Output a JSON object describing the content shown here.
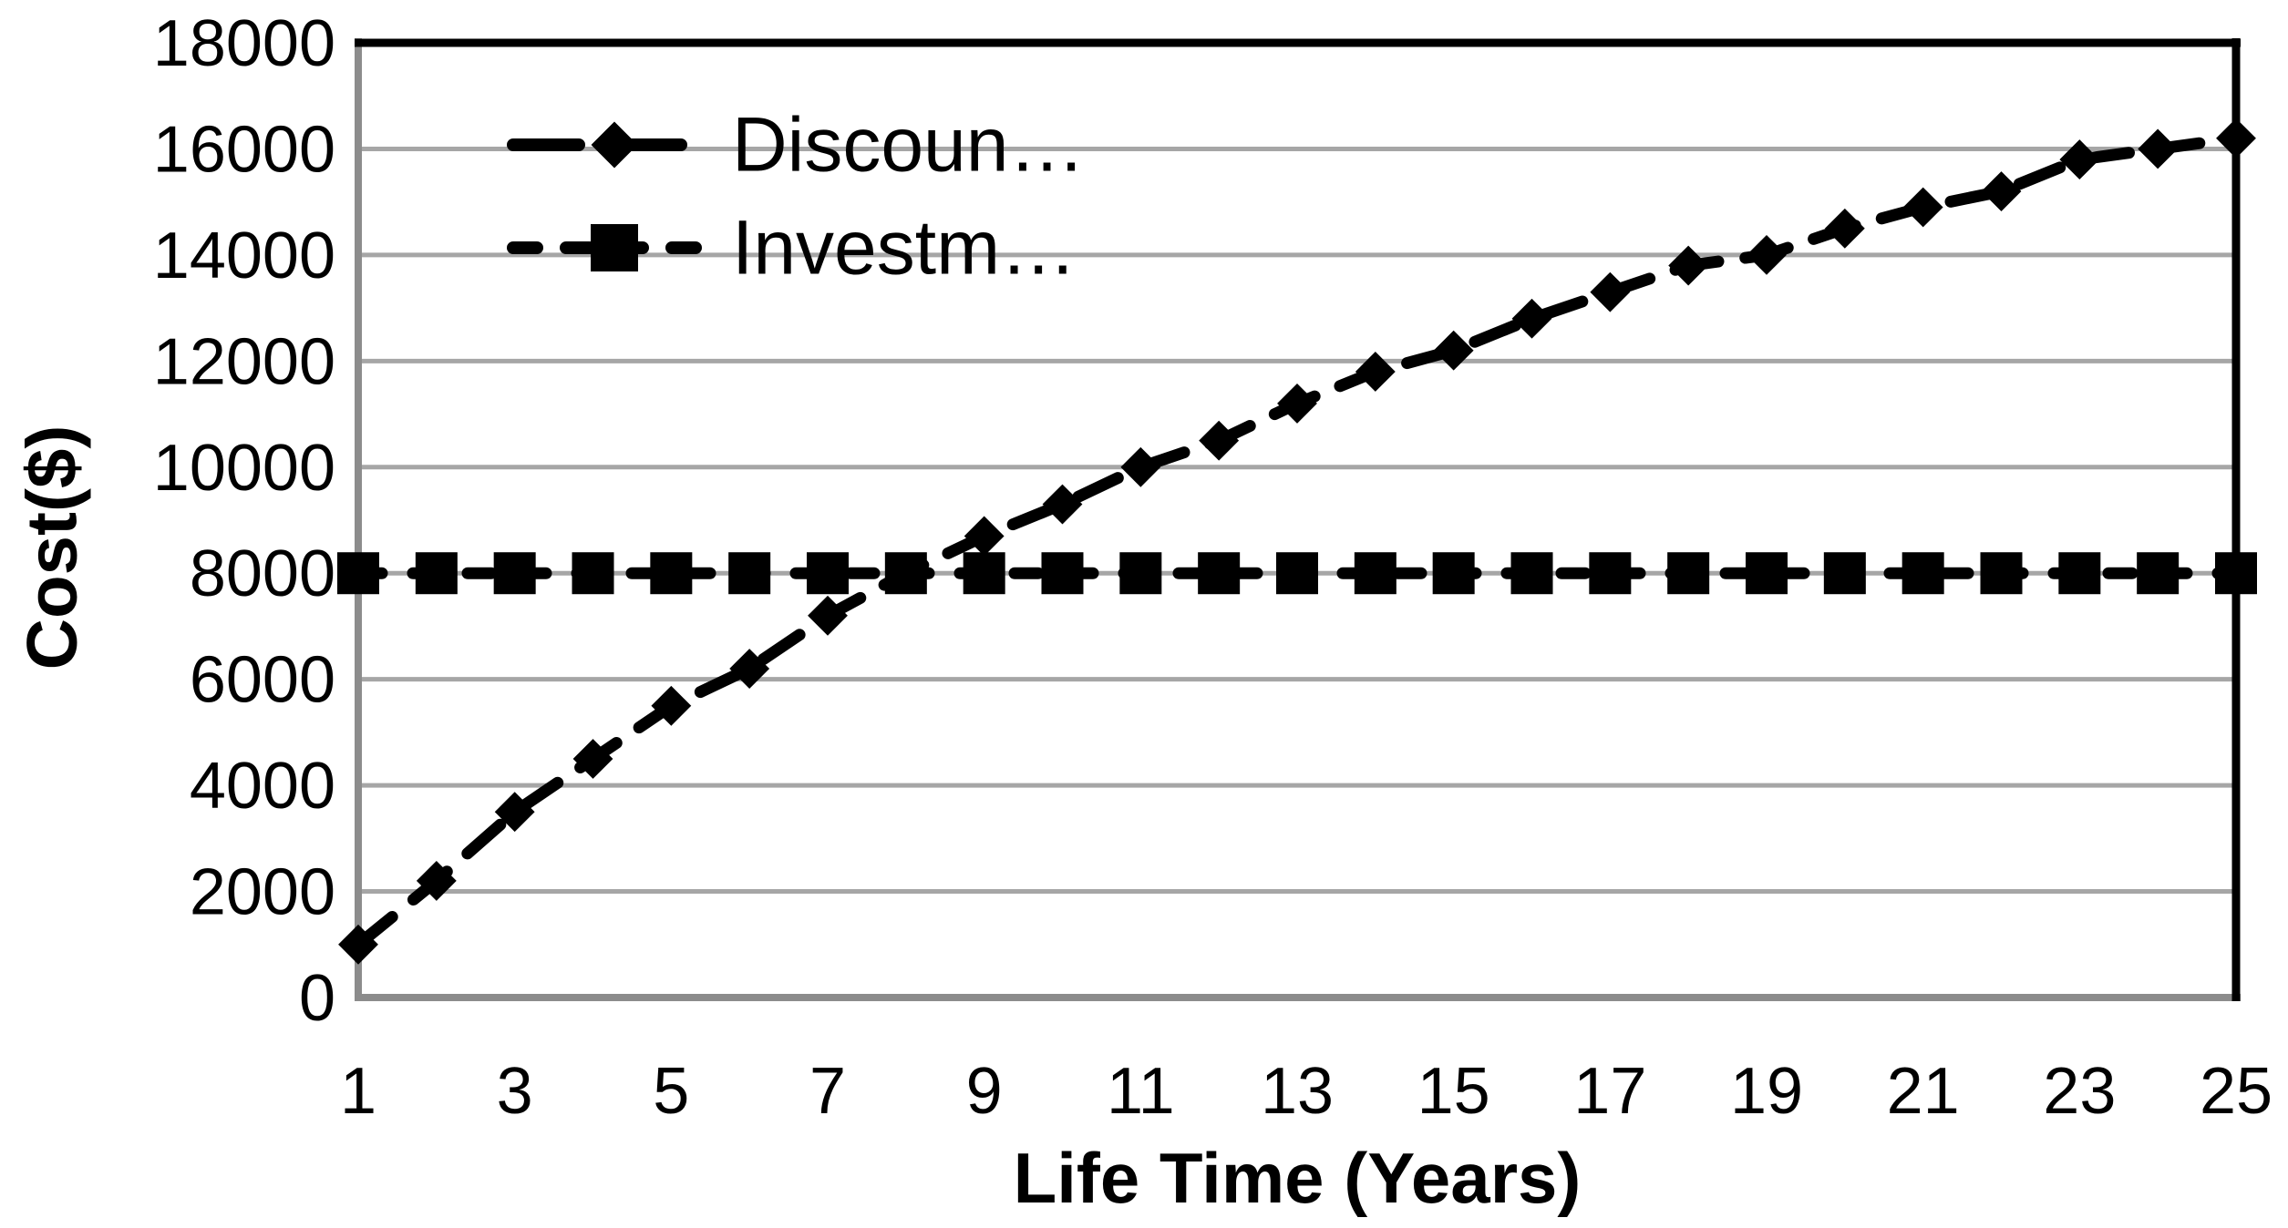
{
  "chart": {
    "y_axis_title": "Cost($)",
    "x_axis_title": "Life Time (Years)",
    "legend": {
      "position": "top-left-inside",
      "entries": [
        {
          "label": "Discoun…",
          "marker": "diamond-marker",
          "line_style": "long-dash"
        },
        {
          "label": "Investm…",
          "marker": "square-marker",
          "line_style": "short-dash"
        }
      ]
    },
    "colors": {
      "series_ink": "#000000",
      "gridline": "#a6a6a6",
      "axis_line": "#8c8c8c",
      "border_top_right": "#000000",
      "background": "#ffffff",
      "text": "#000000"
    }
  },
  "chart_data": {
    "type": "line",
    "title": "",
    "xlabel": "Life Time (Years)",
    "ylabel": "Cost($)",
    "x": [
      1,
      2,
      3,
      4,
      5,
      6,
      7,
      8,
      9,
      10,
      11,
      12,
      13,
      14,
      15,
      16,
      17,
      18,
      19,
      20,
      21,
      22,
      23,
      24,
      25
    ],
    "x_tick_labels": [
      "1",
      "3",
      "5",
      "7",
      "9",
      "11",
      "13",
      "15",
      "17",
      "19",
      "21",
      "23",
      "25"
    ],
    "x_tick_values": [
      1,
      3,
      5,
      7,
      9,
      11,
      13,
      15,
      17,
      19,
      21,
      23,
      25
    ],
    "y_tick_labels": [
      "0",
      "2000",
      "4000",
      "6000",
      "8000",
      "10000",
      "12000",
      "14000",
      "16000",
      "18000"
    ],
    "y_tick_values": [
      0,
      2000,
      4000,
      6000,
      8000,
      10000,
      12000,
      14000,
      16000,
      18000
    ],
    "xlim": [
      1,
      25
    ],
    "ylim": [
      0,
      18000
    ],
    "grid": "horizontal",
    "legend_position": "top-left-inside",
    "series": [
      {
        "name": "Discoun…",
        "marker": "diamond",
        "dash": "long",
        "values": [
          1000,
          2200,
          3500,
          4500,
          5500,
          6200,
          7200,
          8000,
          8700,
          9300,
          10000,
          10500,
          11200,
          11800,
          12200,
          12800,
          13300,
          13800,
          14000,
          14500,
          14900,
          15200,
          15800,
          16000,
          16200
        ]
      },
      {
        "name": "Investm…",
        "marker": "square",
        "dash": "short",
        "values": [
          8000,
          8000,
          8000,
          8000,
          8000,
          8000,
          8000,
          8000,
          8000,
          8000,
          8000,
          8000,
          8000,
          8000,
          8000,
          8000,
          8000,
          8000,
          8000,
          8000,
          8000,
          8000,
          8000,
          8000,
          8000
        ]
      }
    ]
  }
}
